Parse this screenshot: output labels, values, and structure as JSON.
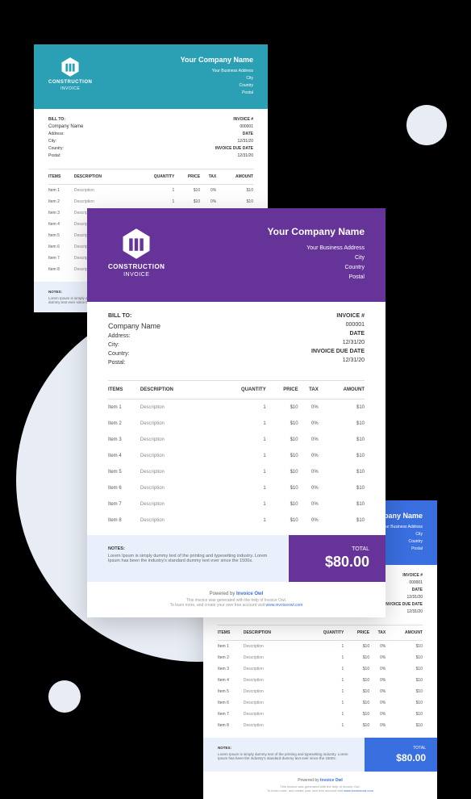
{
  "colors": {
    "teal": "#2b9fb4",
    "purple": "#663399",
    "blue": "#3a6fe0",
    "notes_bg": "#eaf0fb",
    "bg_circle": "#e8edf5"
  },
  "logo": {
    "title": "CONSTRUCTION",
    "subtitle": "INVOICE"
  },
  "company": {
    "name": "Your Company Name",
    "address": "Your Business Address",
    "city": "City",
    "country": "Country",
    "postal": "Postal"
  },
  "bill_to": {
    "label": "BILL TO:",
    "name": "Company Name",
    "address": "Address:",
    "city": "City:",
    "country": "Country:",
    "postal": "Postal:"
  },
  "meta": {
    "invoice_label": "INVOICE #",
    "invoice_no": "000001",
    "date_label": "DATE",
    "date": "12/31/20",
    "due_label": "INVOICE DUE DATE",
    "due": "12/31/20"
  },
  "headers": {
    "items": "ITEMS",
    "description": "DESCRIPTION",
    "quantity": "QUANTITY",
    "price": "PRICE",
    "tax": "TAX",
    "amount": "AMOUNT"
  },
  "rows": [
    {
      "item": "Item 1",
      "desc": "Description",
      "qty": "1",
      "price": "$10",
      "tax": "0%",
      "amount": "$10"
    },
    {
      "item": "Item 2",
      "desc": "Description",
      "qty": "1",
      "price": "$10",
      "tax": "0%",
      "amount": "$10"
    },
    {
      "item": "Item 3",
      "desc": "Description",
      "qty": "1",
      "price": "$10",
      "tax": "0%",
      "amount": "$10"
    },
    {
      "item": "Item 4",
      "desc": "Description",
      "qty": "1",
      "price": "$10",
      "tax": "0%",
      "amount": "$10"
    },
    {
      "item": "Item 5",
      "desc": "Description",
      "qty": "1",
      "price": "$10",
      "tax": "0%",
      "amount": "$10"
    },
    {
      "item": "Item 6",
      "desc": "Description",
      "qty": "1",
      "price": "$10",
      "tax": "0%",
      "amount": "$10"
    },
    {
      "item": "Item 7",
      "desc": "Description",
      "qty": "1",
      "price": "$10",
      "tax": "0%",
      "amount": "$10"
    },
    {
      "item": "Item 8",
      "desc": "Description",
      "qty": "1",
      "price": "$10",
      "tax": "0%",
      "amount": "$10"
    }
  ],
  "notes": {
    "label": "NOTES:",
    "line1": "Lorem Ipsum is simply dummy text of the printing and typesetting industry.",
    "line2": "Lorem Ipsum has been the industry's standard dummy text ever since the 1500s."
  },
  "total": {
    "label": "TOTAL",
    "amount": "$80.00"
  },
  "powered": {
    "prefix": "Powered by",
    "brand": "Invoice Owl",
    "line1": "This invoice was generated with the help of Invoice Owl.",
    "line2_a": "To learn more, and create your own free account visit ",
    "link": "www.invoiceowl.com"
  }
}
